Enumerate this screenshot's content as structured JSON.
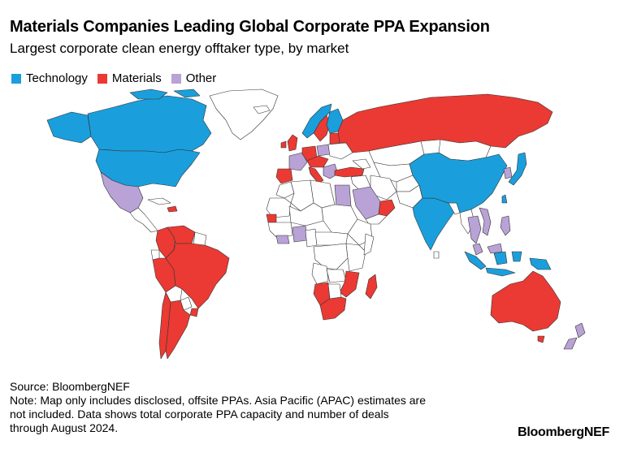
{
  "header": {
    "title": "Materials Companies Leading Global Corporate PPA Expansion",
    "subtitle": "Largest corporate clean energy offtaker type, by market"
  },
  "legend": [
    {
      "label": "Technology",
      "color": "#1a9fdc"
    },
    {
      "label": "Materials",
      "color": "#ea3a33"
    },
    {
      "label": "Other",
      "color": "#b9a2d6"
    }
  ],
  "colors": {
    "technology": "#1a9fdc",
    "materials": "#ea3a33",
    "other": "#b9a2d6",
    "no_data": "#ffffff",
    "border": "#333333"
  },
  "footer": {
    "source": "Source: BloombergNEF",
    "note_lines": [
      "Note: Map only includes disclosed, offsite PPAs. Asia Pacific (APAC) estimates are",
      "not included. Data shows total corporate PPA capacity and number of deals",
      "through August 2024."
    ]
  },
  "brand": "BloombergNEF"
}
